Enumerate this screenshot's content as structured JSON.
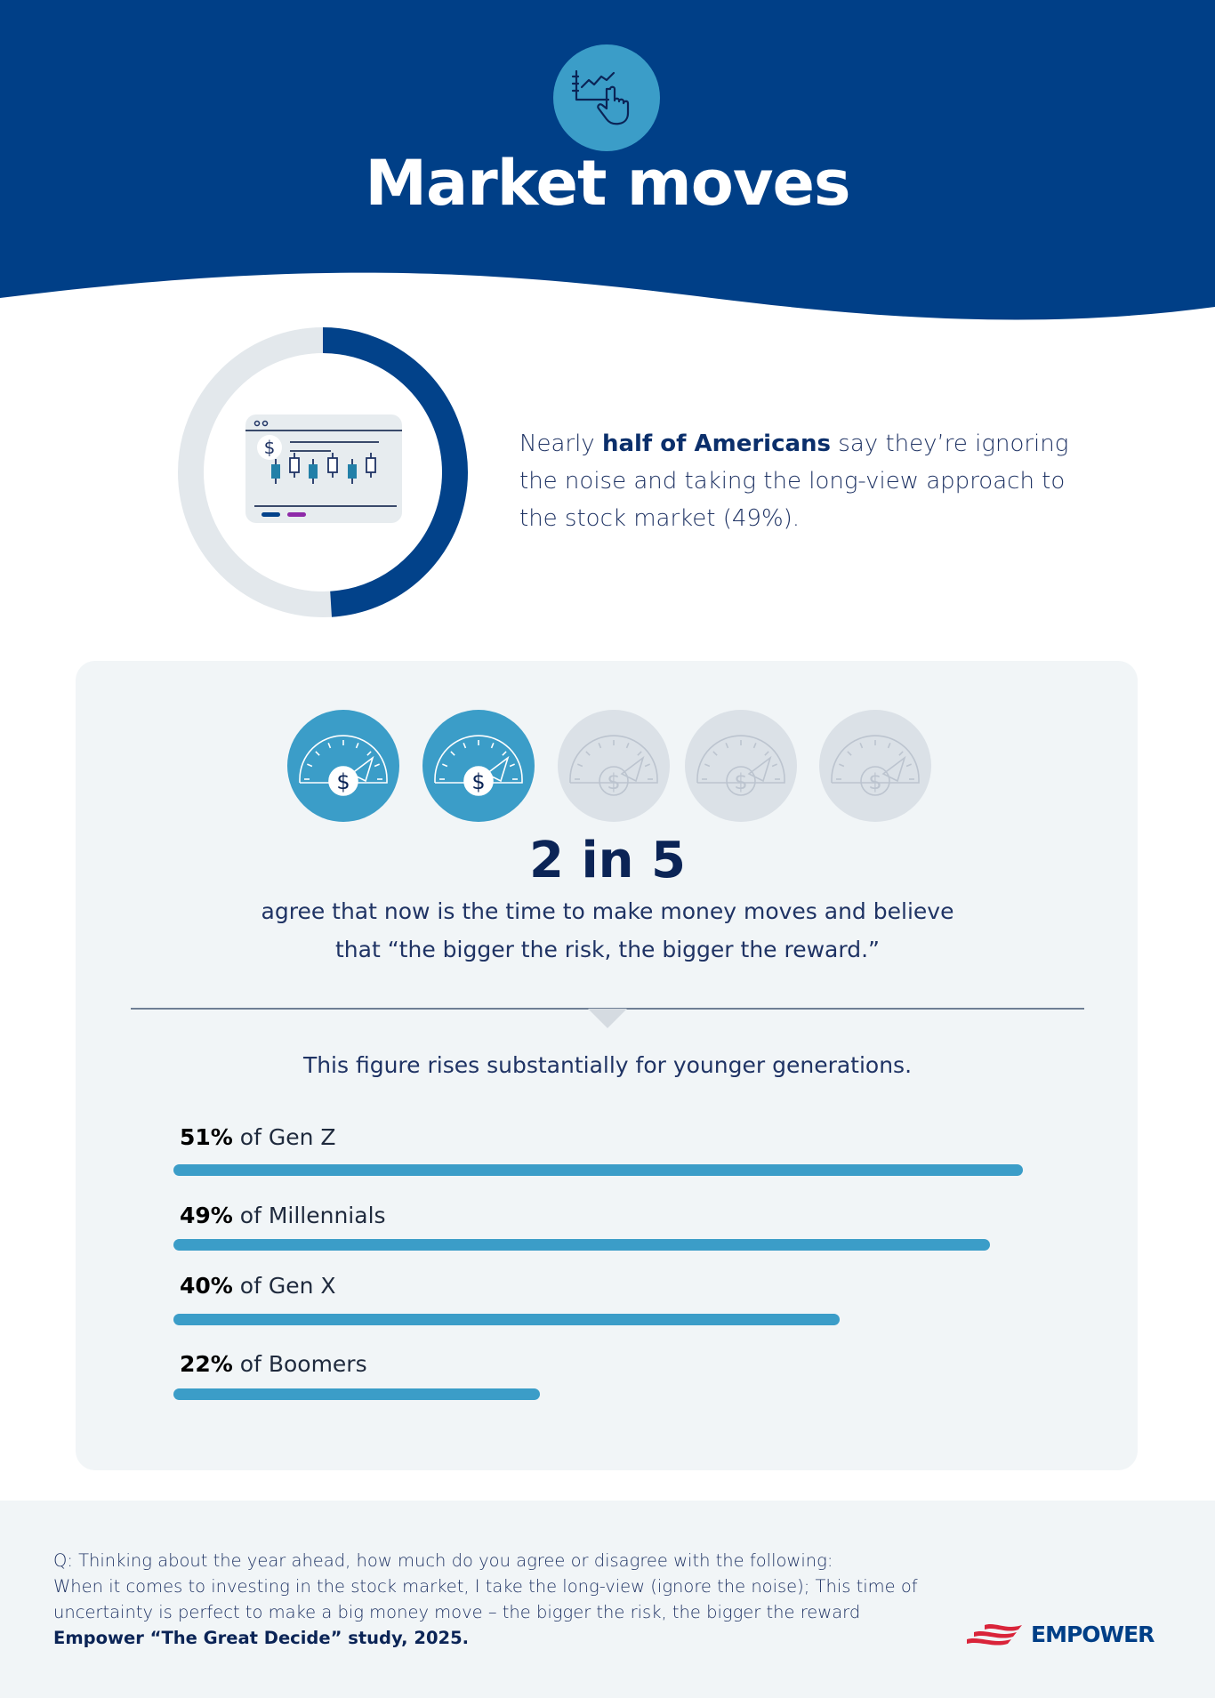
{
  "header": {
    "title": "Market moves",
    "icon": "chart-hand-pointer-icon",
    "bg_color": "#003f87",
    "icon_color": "#3b9dc8"
  },
  "intro": {
    "pre": "Nearly ",
    "bold": "half of Americans",
    "post": " say they’re ignoring the noise and taking the long-view approach to the stock market (49%).",
    "donut_percent": 49,
    "donut_color": "#02428a",
    "donut_track": "#e3e8ec"
  },
  "stat": {
    "gauges_filled": 2,
    "gauges_total": 5,
    "headline": "2 in 5",
    "line1": "agree that now is the time to make money moves and believe",
    "line2": "that “the bigger the risk, the bigger the reward.”",
    "subhead": "This figure rises substantially for younger generations."
  },
  "generations": [
    {
      "percent_label": "51%",
      "label": " of Gen Z",
      "value": 51
    },
    {
      "percent_label": "49%",
      "label": " of Millennials",
      "value": 49
    },
    {
      "percent_label": "40%",
      "label": " of Gen X",
      "value": 40
    },
    {
      "percent_label": "22%",
      "label": " of Boomers",
      "value": 22
    }
  ],
  "footer": {
    "line1": "Q: Thinking about the year ahead, how much do you agree or disagree with the following:",
    "line2": "When it comes to investing in the stock market, I take the long-view (ignore the noise); This time of",
    "line3": "uncertainty is perfect to make a big money move – the bigger the risk, the bigger the reward",
    "source": "Empower “The Great Decide” study, 2025.",
    "logo": "EMPOWER"
  }
}
